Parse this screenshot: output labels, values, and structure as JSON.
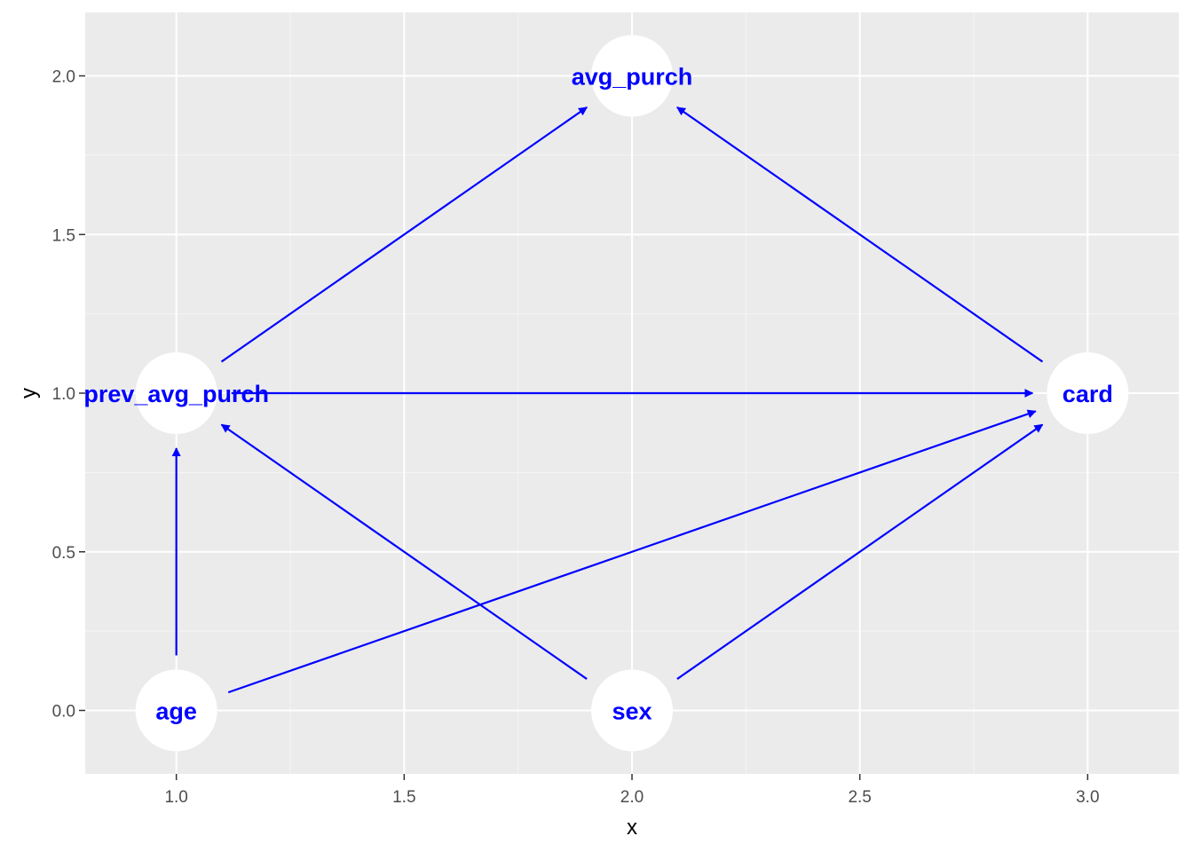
{
  "colors": {
    "panel_background": "#ebebeb",
    "grid_major": "#ffffff",
    "grid_minor": "#f5f5f5",
    "node_fill": "#ffffff",
    "edge": "#0000ff",
    "node_text": "#0000ff",
    "tick_text": "#4d4d4d",
    "tick_mark": "#333333",
    "axis_title": "#000000"
  },
  "chart_data": {
    "type": "scatter",
    "subtype": "directed-acyclic-graph",
    "xlabel": "x",
    "ylabel": "y",
    "xlim": [
      0.8,
      3.2
    ],
    "ylim": [
      -0.2,
      2.2
    ],
    "x_ticks": [
      1.0,
      1.5,
      2.0,
      2.5,
      3.0
    ],
    "x_tick_labels": [
      "1.0",
      "1.5",
      "2.0",
      "2.5",
      "3.0"
    ],
    "y_ticks": [
      0.0,
      0.5,
      1.0,
      1.5,
      2.0
    ],
    "y_tick_labels": [
      "0.0",
      "0.5",
      "1.0",
      "1.5",
      "2.0"
    ],
    "grid": true,
    "nodes": [
      {
        "name": "avg_purch",
        "x": 2.0,
        "y": 2.0
      },
      {
        "name": "prev_avg_purch",
        "x": 1.0,
        "y": 1.0
      },
      {
        "name": "card",
        "x": 3.0,
        "y": 1.0
      },
      {
        "name": "age",
        "x": 1.0,
        "y": 0.0
      },
      {
        "name": "sex",
        "x": 2.0,
        "y": 0.0
      }
    ],
    "edges": [
      {
        "from": "prev_avg_purch",
        "to": "avg_purch"
      },
      {
        "from": "card",
        "to": "avg_purch"
      },
      {
        "from": "prev_avg_purch",
        "to": "card"
      },
      {
        "from": "age",
        "to": "prev_avg_purch"
      },
      {
        "from": "age",
        "to": "card"
      },
      {
        "from": "sex",
        "to": "prev_avg_purch"
      },
      {
        "from": "sex",
        "to": "card"
      }
    ]
  }
}
